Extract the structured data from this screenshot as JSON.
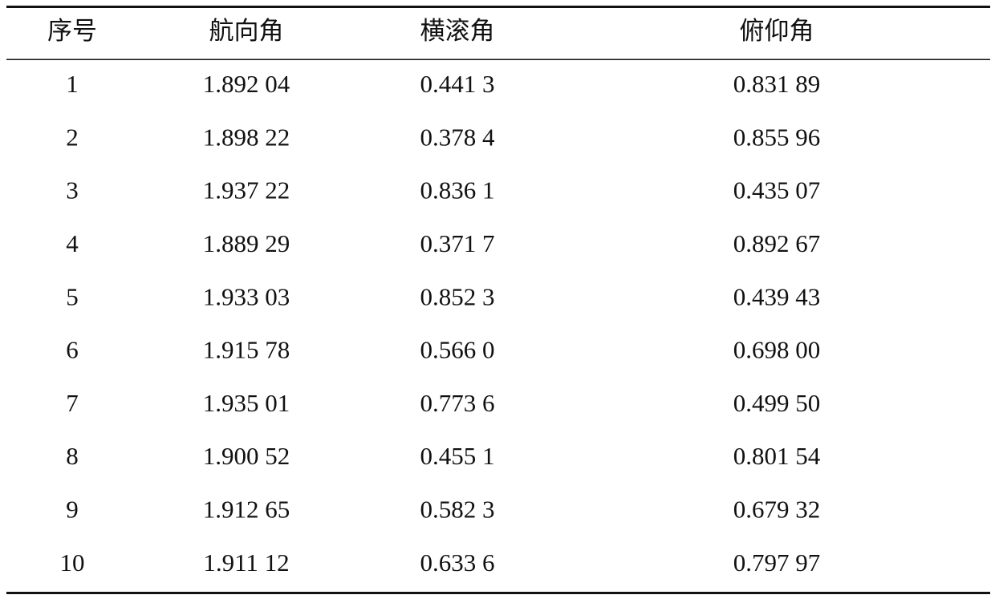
{
  "table": {
    "header": [
      "序号",
      "航向角",
      "横滚角",
      "俯仰角"
    ],
    "rows": [
      [
        "1",
        "1.892 04",
        "0.441 3",
        "0.831 89"
      ],
      [
        "2",
        "1.898 22",
        "0.378 4",
        "0.855 96"
      ],
      [
        "3",
        "1.937 22",
        "0.836 1",
        "0.435 07"
      ],
      [
        "4",
        "1.889 29",
        "0.371 7",
        "0.892 67"
      ],
      [
        "5",
        "1.933 03",
        "0.852 3",
        "0.439 43"
      ],
      [
        "6",
        "1.915 78",
        "0.566 0",
        "0.698 00"
      ],
      [
        "7",
        "1.935 01",
        "0.773 6",
        "0.499 50"
      ],
      [
        "8",
        "1.900 52",
        "0.455 1",
        "0.801 54"
      ],
      [
        "9",
        "1.912 65",
        "0.582 3",
        "0.679 32"
      ],
      [
        "10",
        "1.911 12",
        "0.633 6",
        "0.797 97"
      ]
    ]
  }
}
